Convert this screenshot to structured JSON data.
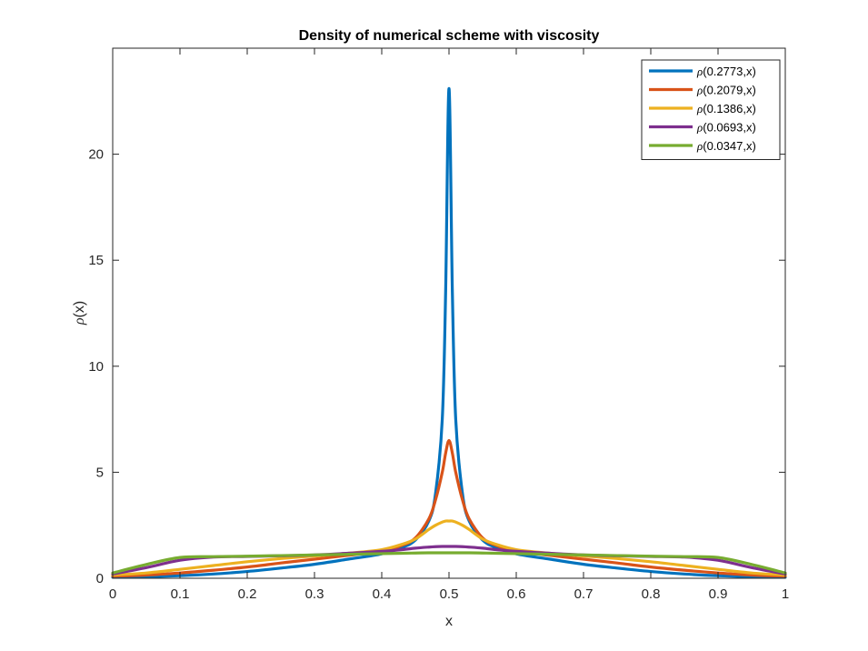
{
  "chart_data": {
    "type": "line",
    "title": "Density of numerical scheme with viscosity",
    "xlabel": "x",
    "ylabel_symbol": "ρ",
    "ylabel_rest": "(x)",
    "xlim": [
      0,
      1
    ],
    "ylim": [
      0,
      25
    ],
    "xticks": [
      0,
      0.1,
      0.2,
      0.3,
      0.4,
      0.5,
      0.6,
      0.7,
      0.8,
      0.9,
      1
    ],
    "xtick_labels": [
      "0",
      "0.1",
      "0.2",
      "0.3",
      "0.4",
      "0.5",
      "0.6",
      "0.7",
      "0.8",
      "0.9",
      "1"
    ],
    "yticks": [
      0,
      5,
      10,
      15,
      20
    ],
    "ytick_labels": [
      "0",
      "5",
      "10",
      "15",
      "20"
    ],
    "grid": false,
    "legend_position": "top-right",
    "x": [
      0,
      0.05,
      0.1,
      0.15,
      0.2,
      0.25,
      0.3,
      0.35,
      0.4,
      0.43,
      0.45,
      0.47,
      0.48,
      0.49,
      0.495,
      0.5,
      0.505,
      0.51,
      0.52,
      0.53,
      0.55,
      0.57,
      0.6,
      0.65,
      0.7,
      0.75,
      0.8,
      0.85,
      0.9,
      0.95,
      1
    ],
    "series": [
      {
        "name_symbol": "ρ",
        "name_rest": "(0.2773,x)",
        "color": "#0072BD",
        "values": [
          0.05,
          0.07,
          0.12,
          0.2,
          0.32,
          0.48,
          0.66,
          0.9,
          1.15,
          1.45,
          1.8,
          2.7,
          4.0,
          7.5,
          13.5,
          23.1,
          13.5,
          7.5,
          4.0,
          2.7,
          1.8,
          1.45,
          1.15,
          0.9,
          0.66,
          0.48,
          0.32,
          0.2,
          0.12,
          0.07,
          0.05
        ]
      },
      {
        "name_symbol": "ρ",
        "name_rest": "(0.2079,x)",
        "color": "#D95319",
        "values": [
          0.1,
          0.15,
          0.25,
          0.38,
          0.53,
          0.72,
          0.9,
          1.08,
          1.28,
          1.55,
          1.9,
          2.8,
          3.7,
          5.0,
          5.9,
          6.5,
          5.9,
          5.0,
          3.7,
          2.8,
          1.9,
          1.55,
          1.28,
          1.08,
          0.9,
          0.72,
          0.53,
          0.38,
          0.25,
          0.15,
          0.1
        ]
      },
      {
        "name_symbol": "ρ",
        "name_rest": "(0.1386,x)",
        "color": "#EDB120",
        "values": [
          0.15,
          0.25,
          0.42,
          0.6,
          0.78,
          0.93,
          1.05,
          1.18,
          1.35,
          1.6,
          1.85,
          2.3,
          2.5,
          2.65,
          2.7,
          2.7,
          2.7,
          2.65,
          2.5,
          2.3,
          1.85,
          1.6,
          1.35,
          1.18,
          1.05,
          0.93,
          0.78,
          0.6,
          0.42,
          0.25,
          0.15
        ]
      },
      {
        "name_symbol": "ρ",
        "name_rest": "(0.0693,x)",
        "color": "#7E2F8E",
        "values": [
          0.2,
          0.5,
          0.85,
          1.0,
          1.03,
          1.06,
          1.1,
          1.18,
          1.27,
          1.35,
          1.42,
          1.47,
          1.49,
          1.5,
          1.5,
          1.5,
          1.5,
          1.5,
          1.49,
          1.47,
          1.42,
          1.35,
          1.27,
          1.18,
          1.1,
          1.06,
          1.03,
          1.0,
          0.85,
          0.5,
          0.2
        ]
      },
      {
        "name_symbol": "ρ",
        "name_rest": "(0.0347,x)",
        "color": "#77AC30",
        "values": [
          0.25,
          0.65,
          0.98,
          1.02,
          1.04,
          1.07,
          1.1,
          1.13,
          1.16,
          1.18,
          1.19,
          1.2,
          1.2,
          1.2,
          1.2,
          1.2,
          1.2,
          1.2,
          1.2,
          1.2,
          1.19,
          1.18,
          1.16,
          1.13,
          1.1,
          1.07,
          1.04,
          1.02,
          0.98,
          0.65,
          0.25
        ]
      }
    ]
  }
}
